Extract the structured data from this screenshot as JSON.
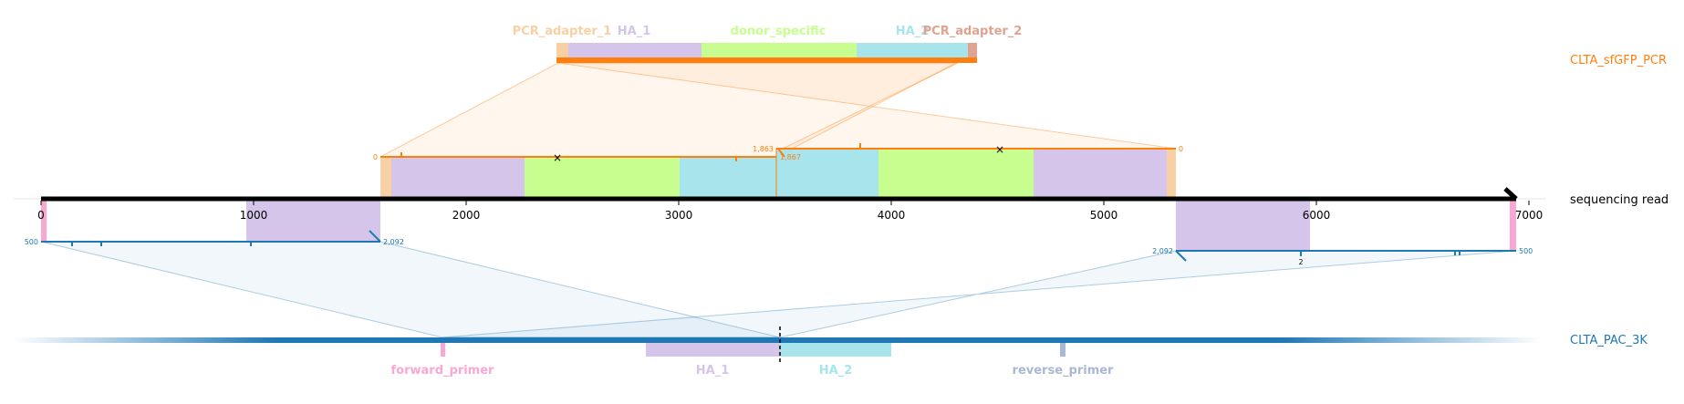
{
  "colors": {
    "pcr_adapter": "#f9d0a3",
    "pcr_adapter_2": "#e0a38f",
    "ha_1": "#d5c5ea",
    "donor_specific": "#c8fe8f",
    "ha_2": "#a8e4ec",
    "forward_primer": "#f9a8d4",
    "reverse_primer": "#a9b8d4",
    "sfgfp_line": "#ff7f0e",
    "pac_line": "#1f77b4",
    "read_line": "#000000"
  },
  "reference_top": {
    "name": "CLTA_sfGFP_PCR",
    "features": [
      {
        "label": "PCR_adapter_1",
        "color_key": "pcr_adapter"
      },
      {
        "label": "HA_1",
        "color_key": "ha_1"
      },
      {
        "label": "donor_specific",
        "color_key": "donor_specific"
      },
      {
        "label": "HA_2",
        "color_key": "ha_2"
      },
      {
        "label": "PCR_adapter_2",
        "color_key": "pcr_adapter_2"
      }
    ]
  },
  "read": {
    "name": "sequencing read",
    "axis_ticks": [
      "0",
      "1000",
      "2000",
      "3000",
      "4000",
      "5000",
      "6000",
      "7000"
    ],
    "upper_alignment_labels": {
      "left_start": "0",
      "left_end": "1,863",
      "right_start": "1,867",
      "right_end": "0"
    },
    "lower_alignment_labels": {
      "left_start": "500",
      "left_end": "2,092",
      "right_start": "2,092",
      "right_mid": "2",
      "right_end": "500"
    }
  },
  "reference_bottom": {
    "name": "CLTA_PAC_3K",
    "features": [
      {
        "label": "forward_primer",
        "color_key": "forward_primer"
      },
      {
        "label": "HA_1",
        "color_key": "ha_1"
      },
      {
        "label": "HA_2",
        "color_key": "ha_2"
      },
      {
        "label": "reverse_primer",
        "color_key": "reverse_primer"
      }
    ]
  }
}
